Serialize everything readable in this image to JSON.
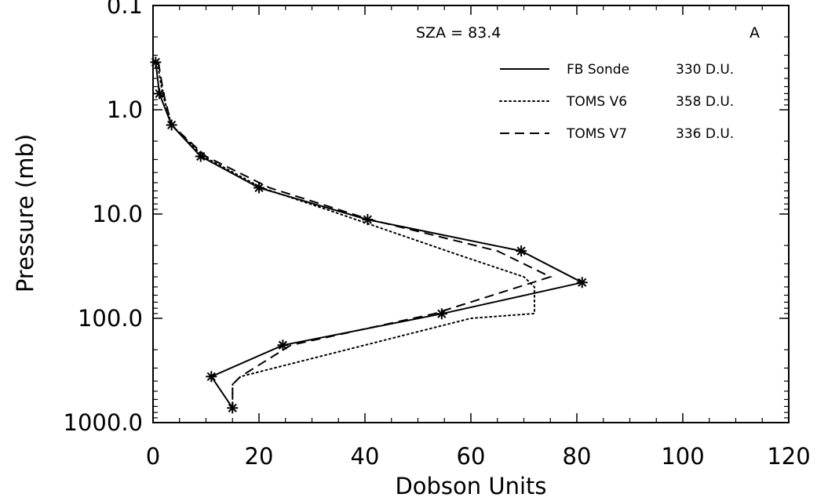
{
  "chart_data": {
    "type": "line",
    "title": "",
    "xlabel": "Dobson Units",
    "ylabel": "Pressure (mb)",
    "xlim": [
      0,
      120
    ],
    "ylim": [
      0.1,
      1000
    ],
    "y_scale": "log",
    "y_reversed": true,
    "grid": false,
    "xticks": [
      0,
      20,
      40,
      60,
      80,
      100,
      120
    ],
    "yticks": [
      {
        "value": 0.1,
        "label": "0.1"
      },
      {
        "value": 1,
        "label": "1.0"
      },
      {
        "value": 10,
        "label": "10.0"
      },
      {
        "value": 100,
        "label": "100.0"
      },
      {
        "value": 1000,
        "label": "1000.0"
      }
    ],
    "annotations": {
      "sza": "SZA = 83.4",
      "panel": "A"
    },
    "legend_placement": "top-right",
    "series": [
      {
        "name": "FB Sonde",
        "total": "330 D.U.",
        "style": "solid",
        "markers": true,
        "x": [
          0.5,
          1.2,
          3.5,
          9.0,
          20.0,
          40.5,
          69.5,
          81.0,
          54.5,
          24.5,
          11.0,
          15.0
        ],
        "y": [
          0.35,
          0.7,
          1.4,
          2.8,
          5.6,
          11.3,
          22.6,
          45.3,
          90.5,
          181,
          362,
          724
        ]
      },
      {
        "name": "TOMS V6",
        "total": "358 D.U.",
        "style": "dotted",
        "markers": false,
        "x": [
          0.8,
          1.8,
          3.5,
          9.5,
          20.5,
          34.0,
          58.0,
          70.0,
          72.0,
          72.0,
          60.0,
          16.5,
          15.0,
          15.0
        ],
        "y": [
          0.35,
          0.7,
          1.4,
          2.8,
          5.6,
          9.5,
          25.0,
          40.0,
          50.0,
          90.0,
          100.0,
          362,
          430,
          724
        ]
      },
      {
        "name": "TOMS V7",
        "total": "336 D.U.",
        "style": "dashed",
        "markers": false,
        "x": [
          1.0,
          2.0,
          3.5,
          10.0,
          22.0,
          41.0,
          65.0,
          75.0,
          53.0,
          26.0,
          16.5,
          15.0,
          15.0
        ],
        "y": [
          0.35,
          0.7,
          1.4,
          2.8,
          5.6,
          11.3,
          22.6,
          40.0,
          90.5,
          181,
          362,
          430,
          724
        ]
      }
    ]
  }
}
